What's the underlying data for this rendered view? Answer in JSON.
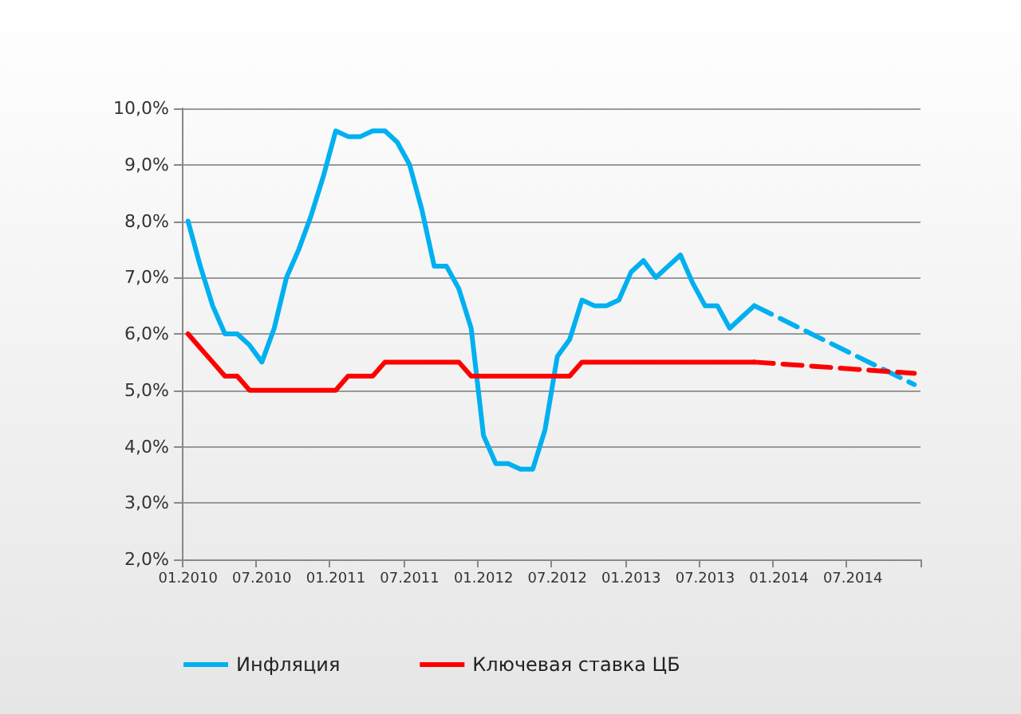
{
  "chart_data": {
    "type": "line",
    "categories": [
      "01.2010",
      null,
      null,
      null,
      null,
      null,
      "07.2010",
      null,
      null,
      null,
      null,
      null,
      "01.2011",
      null,
      null,
      null,
      null,
      null,
      "07.2011",
      null,
      null,
      null,
      null,
      null,
      "01.2012",
      null,
      null,
      null,
      null,
      null,
      "07.2012",
      null,
      null,
      null,
      null,
      null,
      "01.2013",
      null,
      null,
      null,
      null,
      null,
      "07.2013",
      null,
      null,
      null,
      null,
      null,
      "01.2014",
      null,
      null,
      null,
      null,
      null,
      "07.2014",
      null,
      null,
      null,
      null,
      null
    ],
    "ylim": [
      2,
      10
    ],
    "yticks": [
      {
        "value": 2,
        "label": "2,0%"
      },
      {
        "value": 3,
        "label": "3,0%"
      },
      {
        "value": 4,
        "label": "4,0%"
      },
      {
        "value": 5,
        "label": "5,0%"
      },
      {
        "value": 6,
        "label": "6,0%"
      },
      {
        "value": 7,
        "label": "7,0%"
      },
      {
        "value": 8,
        "label": "8,0%"
      },
      {
        "value": 9,
        "label": "9,0%"
      },
      {
        "value": 10,
        "label": "10,0%"
      }
    ],
    "grid": "y",
    "legend": "bottom",
    "marker": "none",
    "series": [
      {
        "name": "Инфляция",
        "color": "#00b0f0",
        "line_style": "solid",
        "values": [
          8.0,
          7.2,
          6.5,
          6.0,
          6.0,
          5.8,
          5.5,
          6.1,
          7.0,
          7.5,
          8.1,
          8.8,
          9.6,
          9.5,
          9.5,
          9.6,
          9.6,
          9.4,
          9.0,
          8.2,
          7.2,
          7.2,
          6.8,
          6.1,
          4.2,
          3.7,
          3.7,
          3.6,
          3.6,
          4.3,
          5.6,
          5.9,
          6.6,
          6.5,
          6.5,
          6.6,
          7.1,
          7.3,
          7.0,
          7.2,
          7.4,
          6.9,
          6.5,
          6.5,
          6.1,
          6.3,
          6.5,
          null,
          null,
          null,
          null,
          null,
          null,
          null,
          null,
          null,
          null,
          null,
          null,
          null
        ]
      },
      {
        "name": "Ключевая ставка ЦБ",
        "color": "#ff0000",
        "line_style": "solid",
        "values": [
          6.0,
          5.75,
          5.5,
          5.25,
          5.25,
          5.0,
          5.0,
          5.0,
          5.0,
          5.0,
          5.0,
          5.0,
          5.0,
          5.25,
          5.25,
          5.25,
          5.5,
          5.5,
          5.5,
          5.5,
          5.5,
          5.5,
          5.5,
          5.25,
          5.25,
          5.25,
          5.25,
          5.25,
          5.25,
          5.25,
          5.25,
          5.25,
          5.5,
          5.5,
          5.5,
          5.5,
          5.5,
          5.5,
          5.5,
          5.5,
          5.5,
          5.5,
          5.5,
          5.5,
          5.5,
          5.5,
          5.5,
          null,
          null,
          null,
          null,
          null,
          null,
          null,
          null,
          null,
          null,
          null,
          null,
          null
        ]
      },
      {
        "color": "#00b0f0",
        "line_style": "dashed",
        "values": [
          null,
          null,
          null,
          null,
          null,
          null,
          null,
          null,
          null,
          null,
          null,
          null,
          null,
          null,
          null,
          null,
          null,
          null,
          null,
          null,
          null,
          null,
          null,
          null,
          null,
          null,
          null,
          null,
          null,
          null,
          null,
          null,
          null,
          null,
          null,
          null,
          null,
          null,
          null,
          null,
          null,
          null,
          null,
          null,
          null,
          null,
          6.5,
          null,
          null,
          null,
          null,
          null,
          null,
          null,
          null,
          null,
          null,
          null,
          null,
          5.1
        ]
      },
      {
        "color": "#ff0000",
        "line_style": "dashed",
        "values": [
          null,
          null,
          null,
          null,
          null,
          null,
          null,
          null,
          null,
          null,
          null,
          null,
          null,
          null,
          null,
          null,
          null,
          null,
          null,
          null,
          null,
          null,
          null,
          null,
          null,
          null,
          null,
          null,
          null,
          null,
          null,
          null,
          null,
          null,
          null,
          null,
          null,
          null,
          null,
          null,
          null,
          null,
          null,
          null,
          null,
          null,
          5.5,
          null,
          null,
          null,
          null,
          null,
          null,
          null,
          null,
          null,
          null,
          null,
          null,
          5.3
        ]
      }
    ]
  }
}
